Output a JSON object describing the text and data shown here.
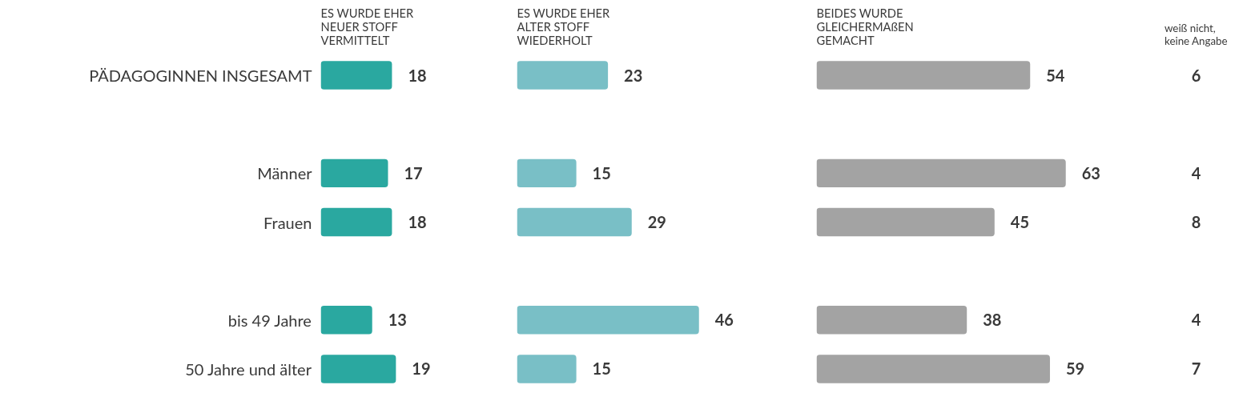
{
  "chart_data": [
    {
      "type": "bar",
      "orientation": "horizontal",
      "title": "ES WURDE EHER NEUER STOFF VERMITTELT",
      "categories": [
        "PÄDAGOGINNEN INSGESAMT",
        null,
        "Männer",
        "Frauen",
        null,
        "bis 49 Jahre",
        "50 Jahre und älter"
      ],
      "values": [
        18,
        null,
        17,
        18,
        null,
        13,
        19
      ],
      "color": "#2aa8a0",
      "data_labels": true,
      "tick_labels": "y"
    },
    {
      "type": "bar",
      "orientation": "horizontal",
      "title": "ES WURDE EHER ALTER STOFF WIEDERHOLT",
      "values": [
        23,
        null,
        15,
        29,
        null,
        46,
        15
      ],
      "color": "#79bfc6",
      "data_labels": true,
      "tick_labels": false
    },
    {
      "type": "bar",
      "orientation": "horizontal",
      "title": "BEIDES WURDE GLEICHERMAßEN GEMACHT",
      "values": [
        54,
        null,
        63,
        45,
        null,
        38,
        59
      ],
      "color": "#a3a3a3",
      "data_labels": true,
      "tick_labels": false
    },
    {
      "type": "other",
      "title": "weiß nicht, keine Angabe",
      "annotations": [
        "6",
        "4",
        "8",
        "4",
        "7"
      ]
    }
  ]
}
